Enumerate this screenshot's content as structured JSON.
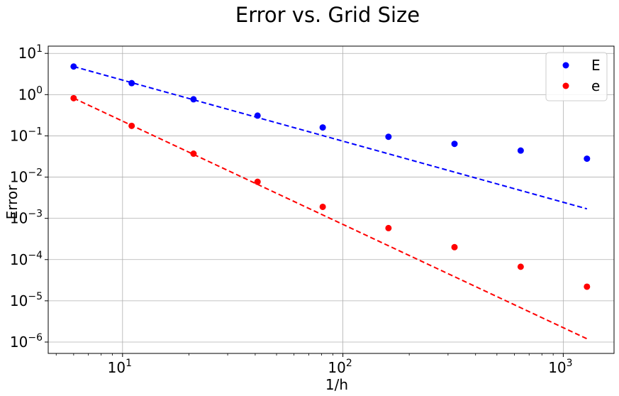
{
  "chart_data": {
    "type": "scatter",
    "title": "Error vs. Grid Size",
    "xlabel": "1/h",
    "ylabel": "Error",
    "xscale": "log",
    "yscale": "log",
    "xlim": [
      4.6,
      1700
    ],
    "ylim": [
      5.3e-07,
      15
    ],
    "grid": true,
    "legend_position": "top-right",
    "x": [
      6,
      11,
      21,
      41,
      81,
      161,
      321,
      641,
      1281
    ],
    "series": [
      {
        "name": "E",
        "color": "#0000ff",
        "values": [
          4.8,
          1.9,
          0.77,
          0.31,
          0.16,
          0.095,
          0.064,
          0.044,
          0.028
        ]
      },
      {
        "name": "e",
        "color": "#ff0000",
        "values": [
          0.82,
          0.175,
          0.037,
          0.0077,
          0.0019,
          0.00058,
          0.0002,
          6.7e-05,
          2.2e-05
        ]
      }
    ],
    "fit_lines": [
      {
        "series": "E",
        "color": "#0000ff",
        "style": "dashed",
        "x": [
          6,
          1281
        ],
        "y": [
          4.8,
          0.0017
        ]
      },
      {
        "series": "e",
        "color": "#ff0000",
        "style": "dashed",
        "x": [
          6,
          1281
        ],
        "y": [
          0.82,
          1.2e-06
        ]
      }
    ],
    "x_ticks": [
      {
        "value": 10,
        "base": "10",
        "exp": "1"
      },
      {
        "value": 100,
        "base": "10",
        "exp": "2"
      },
      {
        "value": 1000,
        "base": "10",
        "exp": "3"
      }
    ],
    "y_ticks": [
      {
        "value": 10,
        "base": "10",
        "exp": "1"
      },
      {
        "value": 1,
        "base": "10",
        "exp": "0"
      },
      {
        "value": 0.1,
        "base": "10",
        "exp": "−1"
      },
      {
        "value": 0.01,
        "base": "10",
        "exp": "−2"
      },
      {
        "value": 0.001,
        "base": "10",
        "exp": "−3"
      },
      {
        "value": 0.0001,
        "base": "10",
        "exp": "−4"
      },
      {
        "value": 1e-05,
        "base": "10",
        "exp": "−5"
      },
      {
        "value": 1e-06,
        "base": "10",
        "exp": "−6"
      }
    ]
  }
}
